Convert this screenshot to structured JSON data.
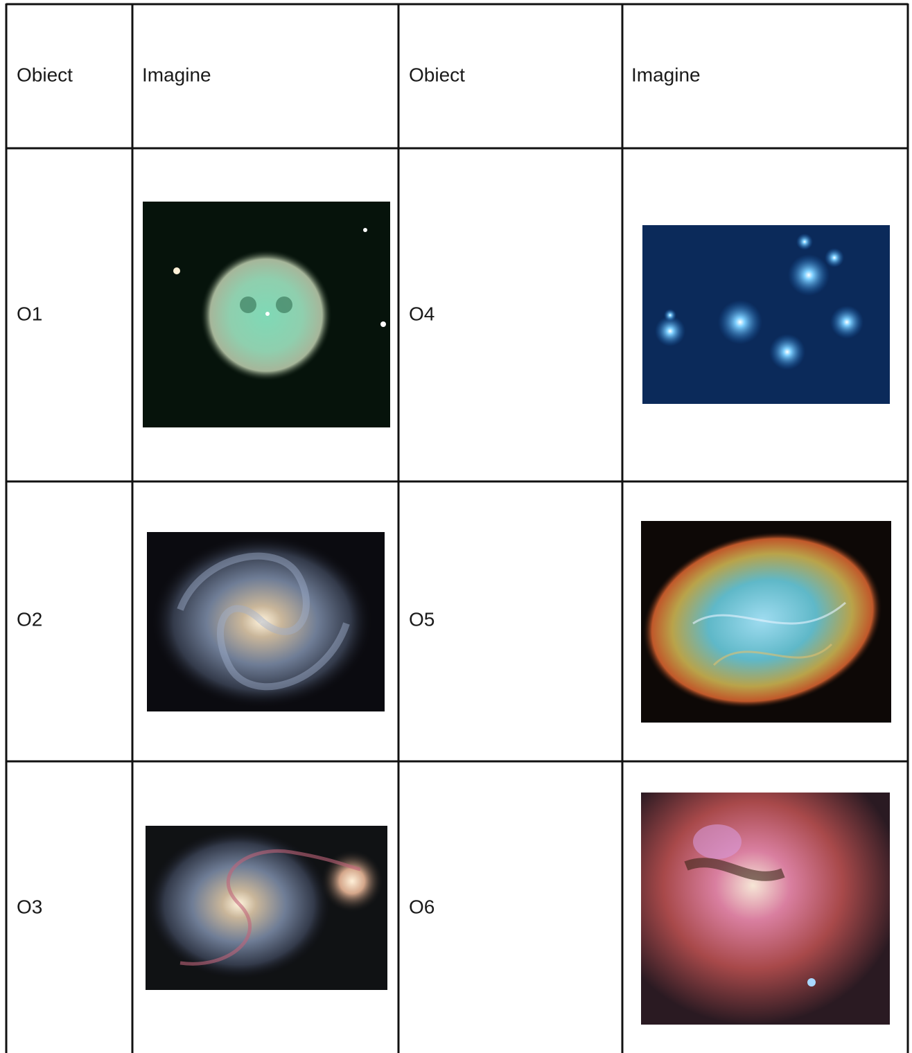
{
  "table": {
    "header": [
      "Obiect",
      "Imagine",
      "Obiect",
      "Imagine"
    ],
    "rows": [
      [
        "O1",
        "O4"
      ],
      [
        "O2",
        "O5"
      ],
      [
        "O3",
        "O6"
      ]
    ]
  }
}
